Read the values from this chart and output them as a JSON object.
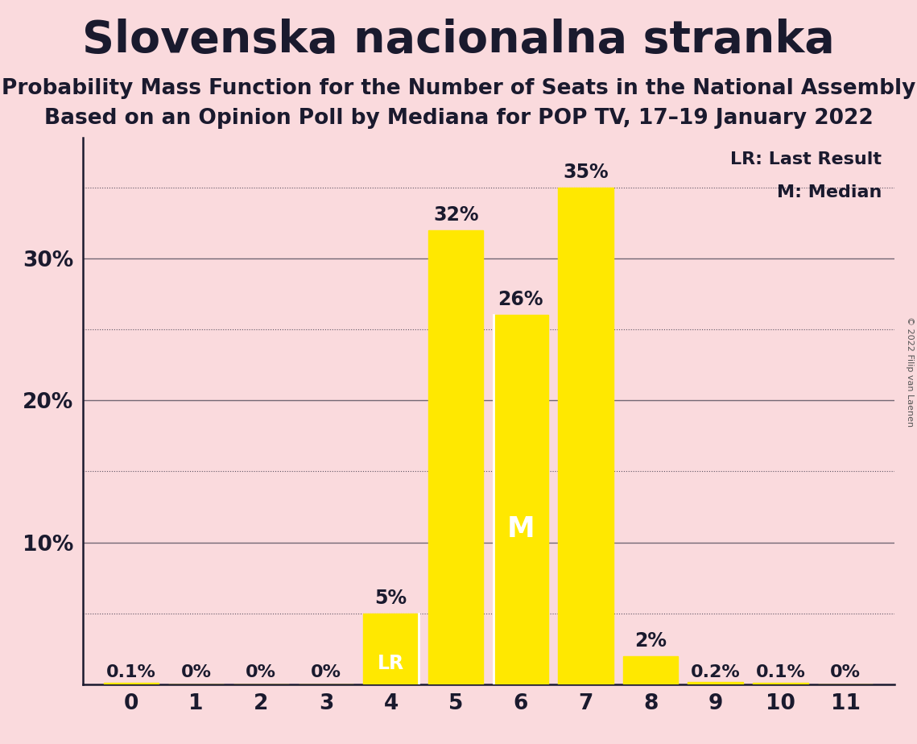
{
  "title": "Slovenska nacionalna stranka",
  "subtitle1": "Probability Mass Function for the Number of Seats in the National Assembly",
  "subtitle2": "Based on an Opinion Poll by Mediana for POP TV, 17–19 January 2022",
  "copyright": "© 2022 Filip van Laenen",
  "categories": [
    0,
    1,
    2,
    3,
    4,
    5,
    6,
    7,
    8,
    9,
    10,
    11
  ],
  "values": [
    0.001,
    0.0,
    0.0,
    0.0,
    0.05,
    0.32,
    0.26,
    0.35,
    0.02,
    0.002,
    0.001,
    0.0
  ],
  "bar_labels": [
    "0.1%",
    "0%",
    "0%",
    "0%",
    "5%",
    "32%",
    "26%",
    "35%",
    "2%",
    "0.2%",
    "0.1%",
    "0%"
  ],
  "bar_color": "#FFE800",
  "background_color": "#FADADD",
  "last_result_seat": 4,
  "median_seat": 6,
  "ylim": [
    0,
    0.385
  ],
  "solid_yticks": [
    0.1,
    0.2,
    0.3
  ],
  "dotted_yticks": [
    0.05,
    0.15,
    0.25,
    0.35
  ],
  "ytick_labels_solid": [
    "10%",
    "20%",
    "30%"
  ],
  "ytick_display": [
    0.1,
    0.2,
    0.3
  ],
  "ytick_label_map": {
    "0.1": "10%",
    "0.2": "20%",
    "0.3": "30%"
  },
  "legend_lr": "LR: Last Result",
  "legend_m": "M: Median",
  "bar_label_fontsize": 17,
  "title_fontsize": 40,
  "subtitle_fontsize": 19,
  "axis_fontsize": 19,
  "axis_color": "#1a1a2e",
  "label_color": "#1a1a2e"
}
